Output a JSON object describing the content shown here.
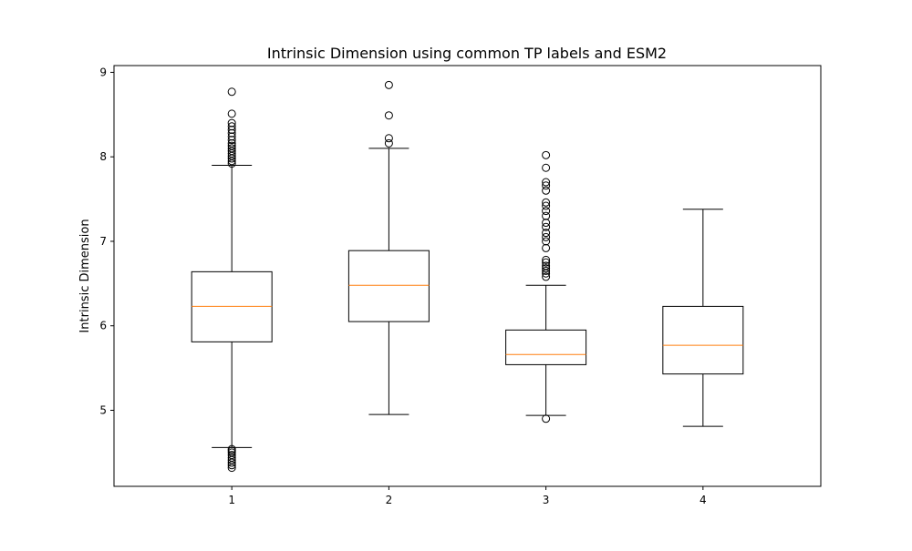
{
  "chart_data": {
    "type": "box",
    "title": "Intrinsic Dimension using common TP labels and ESM2",
    "xlabel": "",
    "ylabel": "Intrinsic Dimension",
    "categories": [
      "1",
      "2",
      "3",
      "4"
    ],
    "ylim": [
      4.1,
      9.08
    ],
    "yticks": [
      5,
      6,
      7,
      8,
      9
    ],
    "grid": false,
    "colors": {
      "box": "#000000",
      "median": "#ff7f0e",
      "flier": "#000000"
    },
    "boxes": [
      {
        "label": "1",
        "whisker_low": 4.56,
        "q1": 5.81,
        "median": 6.23,
        "q3": 6.64,
        "whisker_high": 7.9,
        "outliers": [
          4.32,
          4.35,
          4.38,
          4.41,
          4.44,
          4.47,
          4.5,
          4.52,
          4.54,
          7.92,
          7.95,
          7.98,
          8.01,
          8.04,
          8.07,
          8.1,
          8.13,
          8.16,
          8.2,
          8.24,
          8.28,
          8.32,
          8.36,
          8.4,
          8.51,
          8.77
        ]
      },
      {
        "label": "2",
        "whisker_low": 4.95,
        "q1": 6.05,
        "median": 6.48,
        "q3": 6.89,
        "whisker_high": 8.1,
        "outliers": [
          8.16,
          8.22,
          8.49,
          8.85
        ]
      },
      {
        "label": "3",
        "whisker_low": 4.94,
        "q1": 5.54,
        "median": 5.66,
        "q3": 5.95,
        "whisker_high": 6.48,
        "outliers": [
          4.9,
          6.58,
          6.62,
          6.65,
          6.68,
          6.71,
          6.75,
          6.78,
          6.92,
          7.0,
          7.05,
          7.1,
          7.17,
          7.22,
          7.3,
          7.36,
          7.42,
          7.46,
          7.6,
          7.66,
          7.7,
          7.87,
          8.02
        ]
      },
      {
        "label": "4",
        "whisker_low": 4.81,
        "q1": 5.43,
        "median": 5.77,
        "q3": 6.23,
        "whisker_high": 7.38,
        "outliers": []
      }
    ]
  }
}
